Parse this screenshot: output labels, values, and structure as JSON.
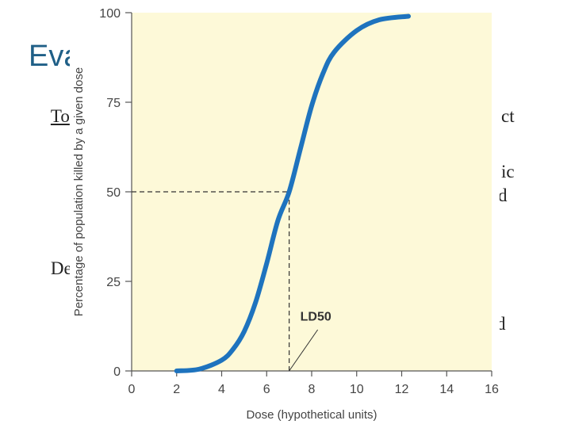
{
  "slide": {
    "title_fragment": "Eva",
    "bullets": [
      {
        "marker": "\u0000",
        "text": "To"
      },
      {
        "marker": "\u0000",
        "text": ""
      },
      {
        "marker": "\u0000",
        "text": ""
      },
      {
        "marker": "\u0000",
        "text": "De"
      },
      {
        "marker": "\u0000",
        "text": ""
      },
      {
        "marker": "\u0000",
        "text": ""
      }
    ],
    "right_fragments": [
      "ct",
      "ic",
      "d",
      "d"
    ]
  },
  "colors": {
    "plot_bg": "#fdf9d8",
    "curve": "#1e73be",
    "title": "#1f5f87"
  },
  "chart_data": {
    "type": "line",
    "title": "",
    "xlabel": "Dose (hypothetical units)",
    "ylabel": "Percentage of population killed by a given dose",
    "xlim": [
      0,
      16
    ],
    "ylim": [
      0,
      100
    ],
    "x_ticks": [
      "0",
      "2",
      "4",
      "6",
      "8",
      "10",
      "12",
      "14",
      "16"
    ],
    "y_ticks": [
      "0",
      "25",
      "50",
      "75",
      "100"
    ],
    "series": [
      {
        "x": [
          2,
          3,
          4,
          4.5,
          5,
          5.5,
          6,
          6.5,
          7,
          7.5,
          8,
          8.5,
          9,
          10,
          11,
          12.3
        ],
        "y": [
          0,
          0.5,
          3,
          6,
          11,
          19,
          30,
          42,
          50,
          62,
          74,
          83,
          89,
          95,
          98,
          99
        ]
      }
    ],
    "reference": {
      "x": 7,
      "y": 50
    },
    "annotation": {
      "text": "LD50"
    }
  }
}
